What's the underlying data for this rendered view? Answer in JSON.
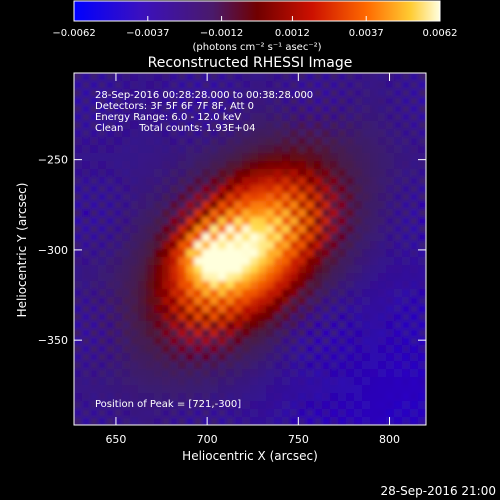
{
  "chart_data": {
    "type": "heatmap",
    "title": "Reconstructed RHESSI Image",
    "xlabel": "Heliocentric X (arcsec)",
    "ylabel": "Heliocentric Y (arcsec)",
    "xlim": [
      627,
      820
    ],
    "ylim": [
      -397,
      -202
    ],
    "x_ticks": [
      650,
      700,
      750,
      800
    ],
    "y_ticks": [
      -250,
      -300,
      -350
    ],
    "grid": false,
    "colorbar": {
      "position": "top",
      "range": [
        -0.0062,
        0.0062
      ],
      "tick_values": [
        -0.0062,
        -0.0037,
        -0.0012,
        0.0012,
        0.0037,
        0.0062
      ],
      "tick_labels": [
        "-0.0062",
        "-0.0037",
        "-0.0012",
        "0.0012",
        "0.0037",
        "0.0062"
      ],
      "unit_label": "(photons cm⁻² s⁻¹ asec⁻²)"
    },
    "annotations": [
      "28-Sep-2016 00:28:28.000 to 00:38:28.000",
      "Detectors: 3F 5F 6F 7F 8F, Att 0",
      "Energy Range: 6.0 - 12.0 keV",
      "Clean     Total counts: 1.93E+04"
    ],
    "peak": {
      "label": "Position of Peak = [721,-300]",
      "x": 721,
      "y": -300
    },
    "timestamp": "28-Sep-2016 21:00",
    "colors": {
      "background": "#000000",
      "low": "#2a00ff",
      "mid_low": "#3a1a55",
      "mid": "#b40000",
      "high": "#ff7800",
      "peak": "#ffffdd"
    }
  }
}
